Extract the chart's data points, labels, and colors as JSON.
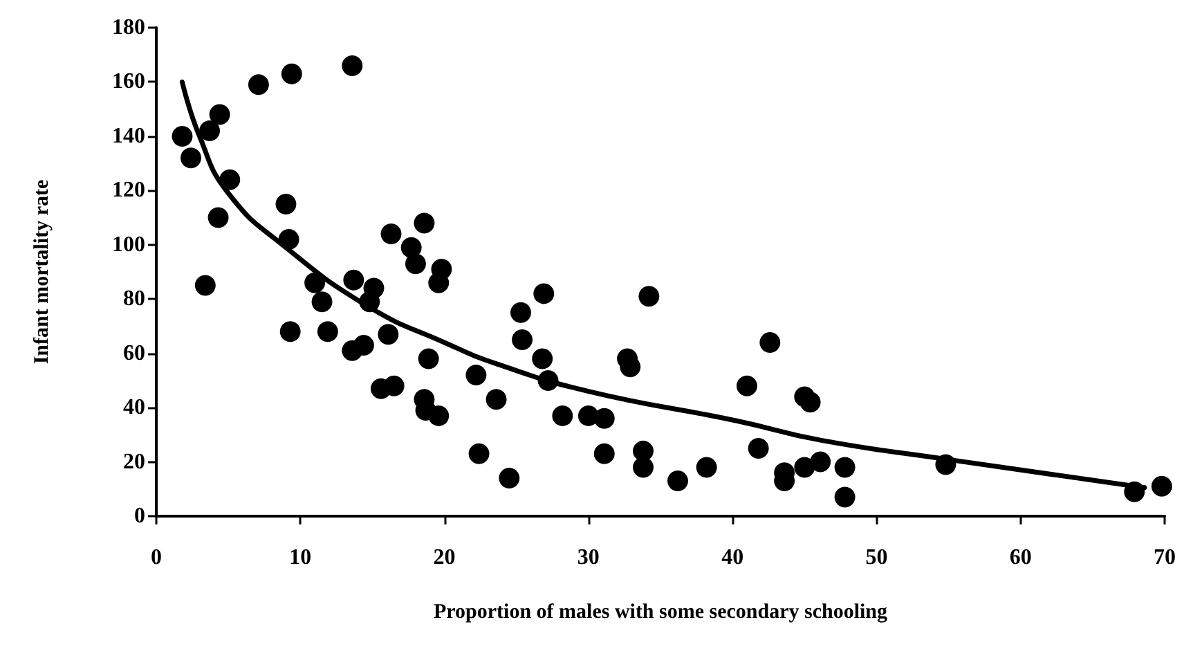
{
  "chart_data": {
    "type": "scatter",
    "xlabel": "Proportion of males with some secondary schooling",
    "ylabel": "Infant mortality rate",
    "xlim": [
      0,
      70
    ],
    "xticks": [
      0,
      10,
      20,
      30,
      40,
      50,
      60,
      70
    ],
    "ylim": [
      0,
      180
    ],
    "yticks": [
      0,
      20,
      40,
      60,
      80,
      100,
      120,
      140,
      160,
      180
    ],
    "grid": false,
    "marker": "circle",
    "series": [
      {
        "color": "#000000",
        "x": [
          1.8,
          2.4,
          3.7,
          4.4,
          4.3,
          3.4,
          5.1,
          7.1,
          9.4,
          13.6,
          9.0,
          9.2,
          9.3,
          11.0,
          11.5,
          11.9,
          13.7,
          15.1,
          14.8,
          13.6,
          14.4,
          16.1,
          16.3,
          18.6,
          17.7,
          18.0,
          19.8,
          19.6,
          18.9,
          15.6,
          16.5,
          18.6,
          18.7,
          19.6,
          22.2,
          22.4,
          23.6,
          24.5,
          26.9,
          25.3,
          25.4,
          26.8,
          27.2,
          28.2,
          30.0,
          31.1,
          31.1,
          34.2,
          32.7,
          32.9,
          33.8,
          33.8,
          36.2,
          38.2,
          41.0,
          42.6,
          41.8,
          45.0,
          45.4,
          43.6,
          43.6,
          45.0,
          46.1,
          47.8,
          47.8,
          54.8,
          67.9,
          69.8
        ],
        "values": [
          140,
          132,
          142,
          148,
          110,
          85,
          124,
          159,
          163,
          166,
          115,
          102,
          68,
          86,
          79,
          68,
          87,
          84,
          79,
          61,
          63,
          67,
          104,
          108,
          99,
          93,
          91,
          86,
          58,
          47,
          48,
          43,
          39,
          37,
          52,
          23,
          43,
          14,
          82,
          75,
          65,
          58,
          50,
          37,
          37,
          36,
          23,
          81,
          58,
          55,
          24,
          18,
          13,
          18,
          48,
          64,
          25,
          44,
          42,
          16,
          13,
          18,
          20,
          18,
          7,
          19,
          9,
          11
        ]
      },
      {
        "type": "line",
        "color": "#000000",
        "marker": "none",
        "x": [
          1.8,
          3,
          5,
          9,
          14.8,
          20,
          23.7,
          30,
          40.4,
          46.1,
          54.8,
          68.6
        ],
        "values": [
          160,
          140,
          119,
          99,
          77,
          64,
          56,
          46,
          35,
          28,
          21,
          10.5
        ]
      }
    ]
  }
}
